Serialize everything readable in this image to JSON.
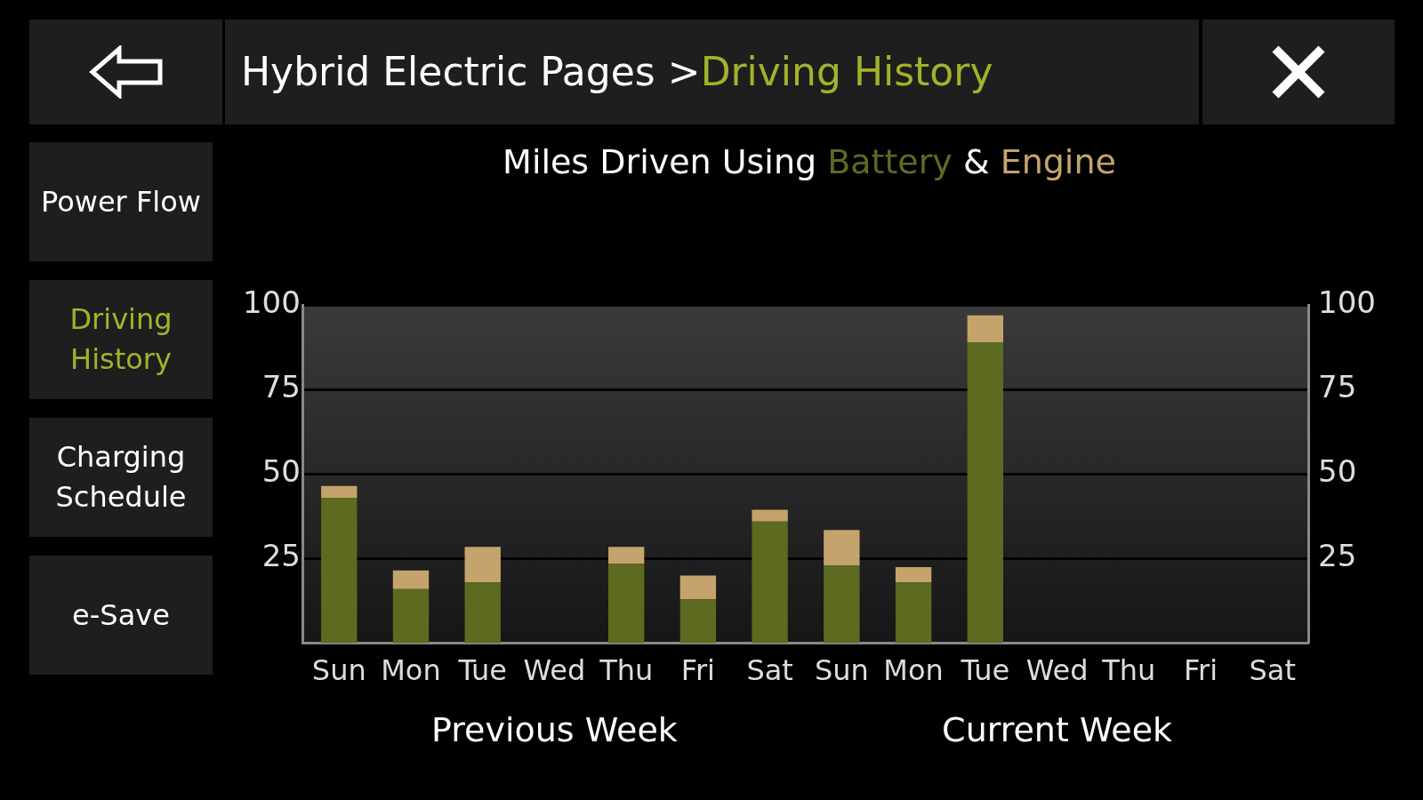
{
  "chart_data": {
    "type": "bar",
    "title": "Miles Driven Using",
    "stacked": true,
    "categories": [
      "Sun",
      "Mon",
      "Tue",
      "Wed",
      "Thu",
      "Fri",
      "Sat",
      "Sun",
      "Mon",
      "Tue",
      "Wed",
      "Thu",
      "Fri",
      "Sat"
    ],
    "series": [
      {
        "name": "Battery",
        "color": "#5c6b1f",
        "values": [
          43,
          16,
          18,
          0,
          23.5,
          13,
          36,
          23,
          18,
          89,
          0,
          0,
          0,
          0
        ]
      },
      {
        "name": "Engine",
        "color": "#c4a46c",
        "values": [
          3.5,
          5.5,
          10.5,
          0,
          5,
          7,
          3.5,
          10.5,
          4.5,
          8,
          0,
          0,
          0,
          0
        ]
      }
    ],
    "ylim": [
      0,
      100
    ],
    "yticks": [
      25,
      50,
      75,
      100
    ],
    "y2lim": [
      0,
      100
    ],
    "y2ticks": [
      25,
      50,
      75,
      100
    ],
    "grid": "y",
    "legend": "top",
    "annotations": [
      "Hybrid Electric Pages >",
      "Driving History",
      "&",
      "Power Flow",
      "Driving History",
      "Charging Schedule",
      "e-Save",
      "Previous Week",
      "Current Week"
    ]
  }
}
